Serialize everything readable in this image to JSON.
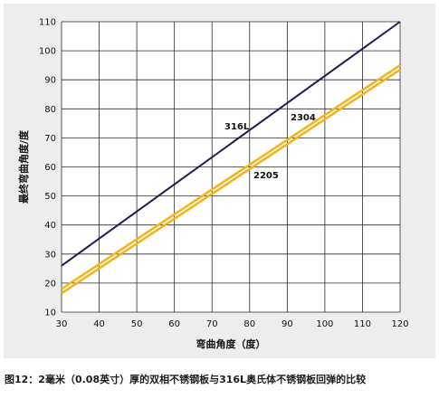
{
  "caption": "图12：2毫米（0.08英寸）厚的双相不锈钢板与316L奥氏体不锈钢板回弹的比较",
  "colors": {
    "panel_background": "#ededee",
    "plot_background": "#ffffff",
    "grid": "#2a2a2a",
    "series_316L": "#1e1b4f",
    "series_2304_2205": "#f2b51d"
  },
  "chart_data": {
    "type": "line",
    "title": "",
    "xlabel": "弯曲角度（度）",
    "ylabel": "最终弯曲角度/度",
    "xlim": [
      30,
      120
    ],
    "ylim": [
      10,
      110
    ],
    "xticks": [
      30,
      40,
      50,
      60,
      70,
      80,
      90,
      100,
      110,
      120
    ],
    "yticks": [
      10,
      20,
      30,
      40,
      50,
      60,
      70,
      80,
      90,
      100,
      110
    ],
    "grid": true,
    "legend": "none",
    "series": [
      {
        "name": "316L",
        "x": [
          30,
          120
        ],
        "y": [
          26,
          110
        ]
      },
      {
        "name": "2304",
        "x": [
          30,
          120
        ],
        "y": [
          18,
          95
        ]
      },
      {
        "name": "2205",
        "x": [
          30,
          120
        ],
        "y": [
          16.5,
          93.5
        ]
      }
    ]
  }
}
